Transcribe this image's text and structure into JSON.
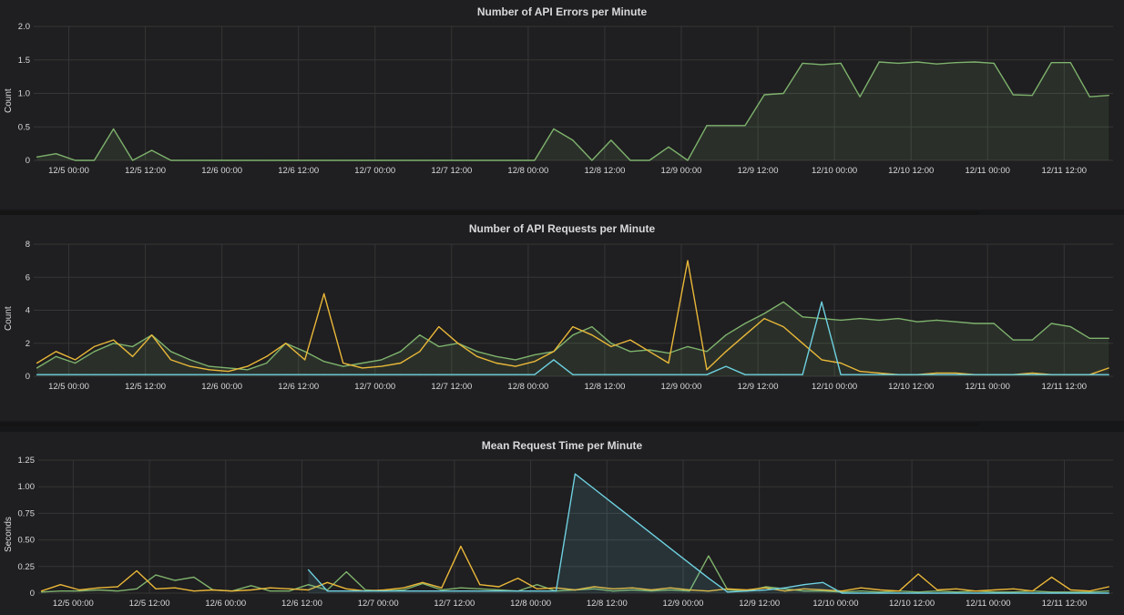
{
  "x": [
    "12/4 19:00",
    "12/4 22:00",
    "12/5 01:00",
    "12/5 04:00",
    "12/5 07:00",
    "12/5 10:00",
    "12/5 13:00",
    "12/5 16:00",
    "12/5 19:00",
    "12/5 22:00",
    "12/6 01:00",
    "12/6 04:00",
    "12/6 07:00",
    "12/6 10:00",
    "12/6 13:00",
    "12/6 16:00",
    "12/6 19:00",
    "12/6 22:00",
    "12/7 01:00",
    "12/7 04:00",
    "12/7 07:00",
    "12/7 10:00",
    "12/7 13:00",
    "12/7 16:00",
    "12/7 19:00",
    "12/7 22:00",
    "12/8 01:00",
    "12/8 04:00",
    "12/8 07:00",
    "12/8 10:00",
    "12/8 13:00",
    "12/8 16:00",
    "12/8 19:00",
    "12/8 22:00",
    "12/9 01:00",
    "12/9 04:00",
    "12/9 07:00",
    "12/9 10:00",
    "12/9 13:00",
    "12/9 16:00",
    "12/9 19:00",
    "12/9 22:00",
    "12/10 01:00",
    "12/10 04:00",
    "12/10 07:00",
    "12/10 10:00",
    "12/10 13:00",
    "12/10 16:00",
    "12/10 19:00",
    "12/10 22:00",
    "12/11 01:00",
    "12/11 04:00",
    "12/11 07:00",
    "12/11 10:00",
    "12/11 13:00",
    "12/11 16:00",
    "12/11 19:00"
  ],
  "colors": {
    "green": "#7eb26d",
    "yellow": "#eab839",
    "blue": "#6ed0e0",
    "grid": "#363636",
    "background": "#1f1e20"
  },
  "chart_data": [
    {
      "type": "area",
      "title": "Number of API Errors per Minute",
      "ylabel": "Count",
      "ylim": [
        0,
        2
      ],
      "yticks": [
        "0",
        "0.5",
        "1.0",
        "1.5",
        "2.0"
      ],
      "xlim": [
        "12/4 18:30",
        "12/11 19:40"
      ],
      "xticks": [
        "12/5 00:00",
        "12/5 12:00",
        "12/6 00:00",
        "12/6 12:00",
        "12/7 00:00",
        "12/7 12:00",
        "12/8 00:00",
        "12/8 12:00",
        "12/9 00:00",
        "12/9 12:00",
        "12/10 00:00",
        "12/10 12:00",
        "12/11 00:00",
        "12/11 12:00"
      ],
      "grid": true,
      "series": [
        {
          "color": "green",
          "fill": true,
          "values": [
            0.05,
            0.1,
            0,
            0,
            0.47,
            0,
            0.15,
            0,
            0,
            0,
            0,
            0,
            0,
            0,
            0,
            0,
            0,
            0,
            0,
            0,
            0,
            0,
            0,
            0,
            0,
            0,
            0,
            0.47,
            0.3,
            0,
            0.3,
            0,
            0,
            0.2,
            0,
            0.52,
            0.52,
            0.52,
            0.98,
            1.0,
            1.45,
            1.43,
            1.45,
            0.95,
            1.47,
            1.45,
            1.47,
            1.44,
            1.46,
            1.47,
            1.45,
            0.98,
            0.97,
            1.46,
            1.46,
            0.95,
            0.97
          ]
        }
      ]
    },
    {
      "type": "line",
      "title": "Number of API Requests per Minute",
      "ylabel": "Count",
      "ylim": [
        0,
        8
      ],
      "yticks": [
        "0",
        "2",
        "4",
        "6",
        "8"
      ],
      "xlim": [
        "12/4 18:30",
        "12/11 19:40"
      ],
      "xticks": [
        "12/5 00:00",
        "12/5 12:00",
        "12/6 00:00",
        "12/6 12:00",
        "12/7 00:00",
        "12/7 12:00",
        "12/8 00:00",
        "12/8 12:00",
        "12/9 00:00",
        "12/9 12:00",
        "12/10 00:00",
        "12/10 12:00",
        "12/11 00:00",
        "12/11 12:00"
      ],
      "grid": true,
      "series": [
        {
          "color": "green",
          "fill": true,
          "values": [
            0.5,
            1.2,
            0.8,
            1.5,
            2.0,
            1.8,
            2.5,
            1.5,
            1.0,
            0.6,
            0.5,
            0.4,
            0.8,
            2.0,
            1.5,
            0.9,
            0.6,
            0.8,
            1.0,
            1.5,
            2.5,
            1.8,
            2.0,
            1.5,
            1.2,
            1.0,
            1.3,
            1.5,
            2.5,
            3.0,
            2.0,
            1.5,
            1.6,
            1.4,
            1.8,
            1.5,
            2.5,
            3.2,
            3.8,
            4.5,
            3.6,
            3.5,
            3.4,
            3.5,
            3.4,
            3.5,
            3.3,
            3.4,
            3.3,
            3.2,
            3.2,
            2.2,
            2.2,
            3.2,
            3.0,
            2.3,
            2.3
          ]
        },
        {
          "color": "yellow",
          "fill": false,
          "values": [
            0.8,
            1.5,
            1.0,
            1.8,
            2.2,
            1.2,
            2.5,
            1.0,
            0.6,
            0.4,
            0.3,
            0.6,
            1.2,
            2.0,
            1.0,
            5.0,
            0.8,
            0.5,
            0.6,
            0.8,
            1.5,
            3.0,
            2.0,
            1.2,
            0.8,
            0.6,
            0.9,
            1.5,
            3.0,
            2.5,
            1.8,
            2.2,
            1.5,
            0.8,
            7.0,
            0.4,
            1.5,
            2.5,
            3.5,
            3.0,
            2.0,
            1.0,
            0.8,
            0.3,
            0.2,
            0.1,
            0.1,
            0.2,
            0.2,
            0.1,
            0.1,
            0.1,
            0.2,
            0.1,
            0.1,
            0.1,
            0.5
          ]
        },
        {
          "color": "blue",
          "fill": false,
          "values": [
            0.1,
            0.1,
            0.1,
            0.1,
            0.1,
            0.1,
            0.1,
            0.1,
            0.1,
            0.1,
            0.1,
            0.1,
            0.1,
            0.1,
            0.1,
            0.1,
            0.1,
            0.1,
            0.1,
            0.1,
            0.1,
            0.1,
            0.1,
            0.1,
            0.1,
            0.1,
            0.1,
            1.0,
            0.1,
            0.1,
            0.1,
            0.1,
            0.1,
            0.1,
            0.1,
            0.1,
            0.6,
            0.1,
            0.1,
            0.1,
            0.1,
            4.5,
            0.1,
            0.1,
            0.1,
            0.1,
            0.1,
            0.1,
            0.1,
            0.1,
            0.1,
            0.1,
            0.1,
            0.1,
            0.1,
            0.1,
            0.1
          ]
        }
      ]
    },
    {
      "type": "line",
      "title": "Mean Request Time per Minute",
      "ylabel": "Seconds",
      "ylim": [
        0,
        1.25
      ],
      "yticks": [
        "0",
        "0.25",
        "0.50",
        "0.75",
        "1.00",
        "1.25"
      ],
      "xlim": [
        "12/4 18:30",
        "12/11 19:40"
      ],
      "xticks": [
        "12/5 00:00",
        "12/5 12:00",
        "12/6 00:00",
        "12/6 12:00",
        "12/7 00:00",
        "12/7 12:00",
        "12/8 00:00",
        "12/8 12:00",
        "12/9 00:00",
        "12/9 12:00",
        "12/10 00:00",
        "12/10 12:00",
        "12/11 00:00",
        "12/11 12:00"
      ],
      "grid": true,
      "series": [
        {
          "color": "green",
          "fill": false,
          "values": [
            0.01,
            0.02,
            0.02,
            0.03,
            0.02,
            0.04,
            0.17,
            0.12,
            0.15,
            0.03,
            0.02,
            0.07,
            0.02,
            0.02,
            0.08,
            0.03,
            0.2,
            0.03,
            0.02,
            0.03,
            0.09,
            0.03,
            0.05,
            0.04,
            0.03,
            0.02,
            0.08,
            0.02,
            0.03,
            0.04,
            0.02,
            0.03,
            0.02,
            0.03,
            0.02,
            0.35,
            0.03,
            0.02,
            0.06,
            0.04,
            0.02,
            0.02,
            0.01,
            0.02,
            0.01,
            0.02,
            0.01,
            0.02,
            0.01,
            0.02,
            0.01,
            0.01,
            0.02,
            0.01,
            0.01,
            0.01,
            0.02
          ]
        },
        {
          "color": "yellow",
          "fill": false,
          "values": [
            0.02,
            0.08,
            0.03,
            0.05,
            0.06,
            0.21,
            0.04,
            0.05,
            0.02,
            0.03,
            0.02,
            0.03,
            0.05,
            0.04,
            0.03,
            0.1,
            0.04,
            0.02,
            0.03,
            0.05,
            0.1,
            0.05,
            0.44,
            0.08,
            0.06,
            0.14,
            0.04,
            0.05,
            0.03,
            0.06,
            0.04,
            0.05,
            0.03,
            0.05,
            0.03,
            0.02,
            0.04,
            0.03,
            0.05,
            0.02,
            0.04,
            0.03,
            0.02,
            0.05,
            0.03,
            0.02,
            0.18,
            0.03,
            0.04,
            0.02,
            0.03,
            0.04,
            0.02,
            0.15,
            0.03,
            0.02,
            0.06
          ]
        },
        {
          "color": "blue",
          "fill": true,
          "values": [
            null,
            null,
            null,
            null,
            null,
            null,
            null,
            null,
            null,
            null,
            null,
            null,
            null,
            null,
            0.22,
            0.02,
            0.02,
            0.02,
            0.02,
            0.02,
            0.02,
            0.02,
            0.02,
            0.02,
            0.02,
            0.02,
            0.02,
            0.02,
            1.12,
            0.98,
            0.84,
            0.7,
            0.56,
            0.42,
            0.28,
            0.14,
            0.01,
            0.02,
            0.03,
            0.05,
            0.08,
            0.1,
            0,
            0,
            0,
            0,
            0,
            0,
            0,
            0,
            0,
            0,
            0,
            0,
            0,
            0,
            0
          ]
        }
      ]
    }
  ]
}
